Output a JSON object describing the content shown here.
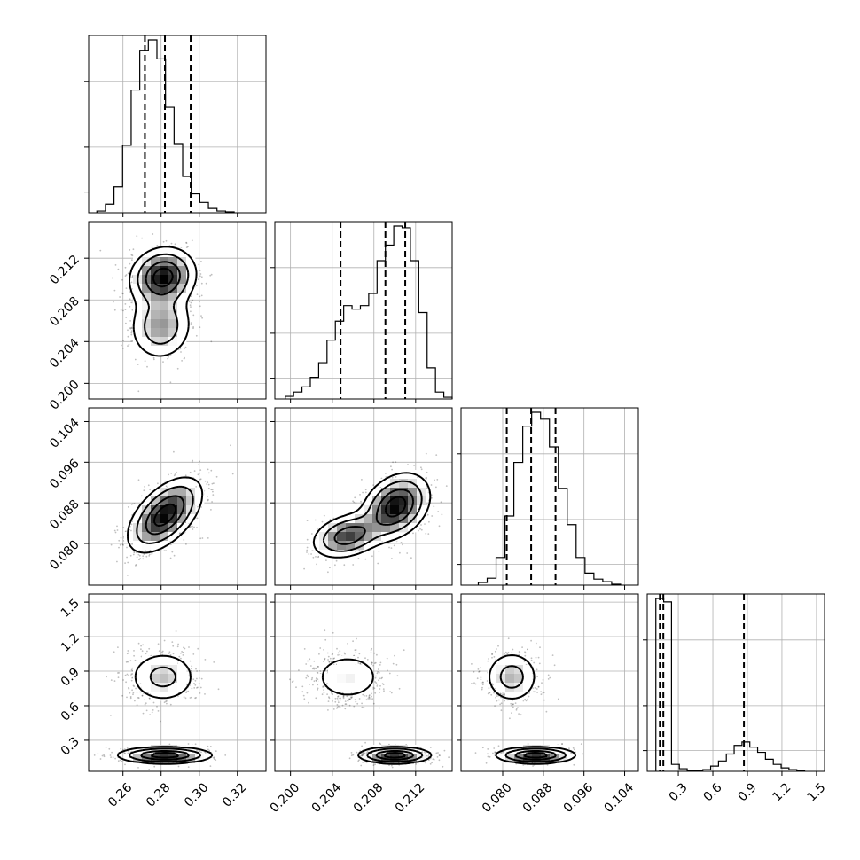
{
  "chart_data": {
    "type": "corner",
    "parameters": [
      {
        "range": [
          0.242,
          0.335
        ],
        "ticks": [
          0.26,
          0.28,
          0.3,
          0.32
        ],
        "tick_labels": [
          "0.26",
          "0.28",
          "0.30",
          "0.32"
        ],
        "quantiles": [
          0.2715,
          0.282,
          0.2955
        ],
        "hist": {
          "start": 0.2463,
          "width": 0.0045,
          "counts": [
            2,
            10,
            30,
            78,
            142,
            188,
            200,
            178,
            122,
            80,
            42,
            22,
            12,
            5,
            2,
            1
          ]
        }
      },
      {
        "range": [
          0.1985,
          0.2155
        ],
        "ticks": [
          0.2,
          0.204,
          0.208,
          0.212
        ],
        "tick_labels": [
          "0.200",
          "0.204",
          "0.208",
          "0.212"
        ],
        "quantiles": [
          0.2048,
          0.2091,
          0.211
        ],
        "hist": {
          "start": 0.1995,
          "width": 0.0008,
          "counts": [
            3,
            8,
            14,
            25,
            42,
            68,
            90,
            108,
            104,
            108,
            122,
            160,
            178,
            200,
            198,
            160,
            100,
            36,
            8,
            2
          ]
        }
      },
      {
        "range": [
          0.0718,
          0.1067
        ],
        "ticks": [
          0.08,
          0.088,
          0.096,
          0.104
        ],
        "tick_labels": [
          "0.080",
          "0.088",
          "0.096",
          "0.104"
        ],
        "quantiles": [
          0.0808,
          0.0856,
          0.0904
        ],
        "hist": {
          "start": 0.0752,
          "width": 0.00175,
          "counts": [
            3,
            8,
            32,
            80,
            142,
            184,
            200,
            192,
            160,
            112,
            70,
            32,
            14,
            7,
            4,
            1
          ]
        }
      },
      {
        "range": [
          0.03,
          1.57
        ],
        "ticks": [
          0.3,
          0.6,
          0.9,
          1.2,
          1.5
        ],
        "tick_labels": [
          "0.3",
          "0.6",
          "0.9",
          "1.2",
          "1.5"
        ],
        "quantiles": [
          0.14,
          0.17,
          0.87
        ],
        "hist": {
          "start": 0.105,
          "width": 0.068,
          "counts": [
            200,
            196,
            8,
            3,
            1,
            1,
            2,
            6,
            12,
            20,
            30,
            34,
            28,
            22,
            14,
            8,
            4,
            2,
            1
          ]
        }
      }
    ],
    "joint": [
      {
        "row": 1,
        "col": 0,
        "components": [
          {
            "w": 0.62,
            "mean": [
              0.281,
              0.2102
            ],
            "sd": [
              0.0085,
              0.0014
            ],
            "rho": 0.1
          },
          {
            "w": 0.38,
            "mean": [
              0.28,
              0.2055
            ],
            "sd": [
              0.0085,
              0.0017
            ],
            "rho": 0.05
          }
        ]
      },
      {
        "row": 2,
        "col": 0,
        "components": [
          {
            "w": 1.0,
            "mean": [
              0.282,
              0.0856
            ],
            "sd": [
              0.0095,
              0.0036
            ],
            "rho": 0.55
          }
        ]
      },
      {
        "row": 2,
        "col": 1,
        "components": [
          {
            "w": 0.64,
            "mean": [
              0.2101,
              0.0873
            ],
            "sd": [
              0.0016,
              0.0032
            ],
            "rho": 0.3
          },
          {
            "w": 0.36,
            "mean": [
              0.2055,
              0.0815
            ],
            "sd": [
              0.0017,
              0.0022
            ],
            "rho": 0.3
          }
        ]
      },
      {
        "row": 3,
        "col": 0,
        "components": [
          {
            "w": 0.5,
            "mean": [
              0.281,
              0.85
            ],
            "sd": [
              0.0095,
              0.12
            ],
            "rho": 0.0
          },
          {
            "w": 0.5,
            "mean": [
              0.282,
              0.17
            ],
            "sd": [
              0.012,
              0.035
            ],
            "rho": 0.0
          }
        ]
      },
      {
        "row": 3,
        "col": 1,
        "components": [
          {
            "w": 0.5,
            "mean": [
              0.2055,
              0.85
            ],
            "sd": [
              0.0019,
              0.12
            ],
            "rho": 0.0
          },
          {
            "w": 0.5,
            "mean": [
              0.21,
              0.17
            ],
            "sd": [
              0.0017,
              0.035
            ],
            "rho": 0.0
          }
        ]
      },
      {
        "row": 3,
        "col": 2,
        "components": [
          {
            "w": 0.5,
            "mean": [
              0.0818,
              0.85
            ],
            "sd": [
              0.0028,
              0.12
            ],
            "rho": 0.0
          },
          {
            "w": 0.5,
            "mean": [
              0.0865,
              0.17
            ],
            "sd": [
              0.0038,
              0.035
            ],
            "rho": 0.0
          }
        ]
      }
    ],
    "grid": true,
    "title": "",
    "xlabel": "",
    "ylabel": ""
  }
}
